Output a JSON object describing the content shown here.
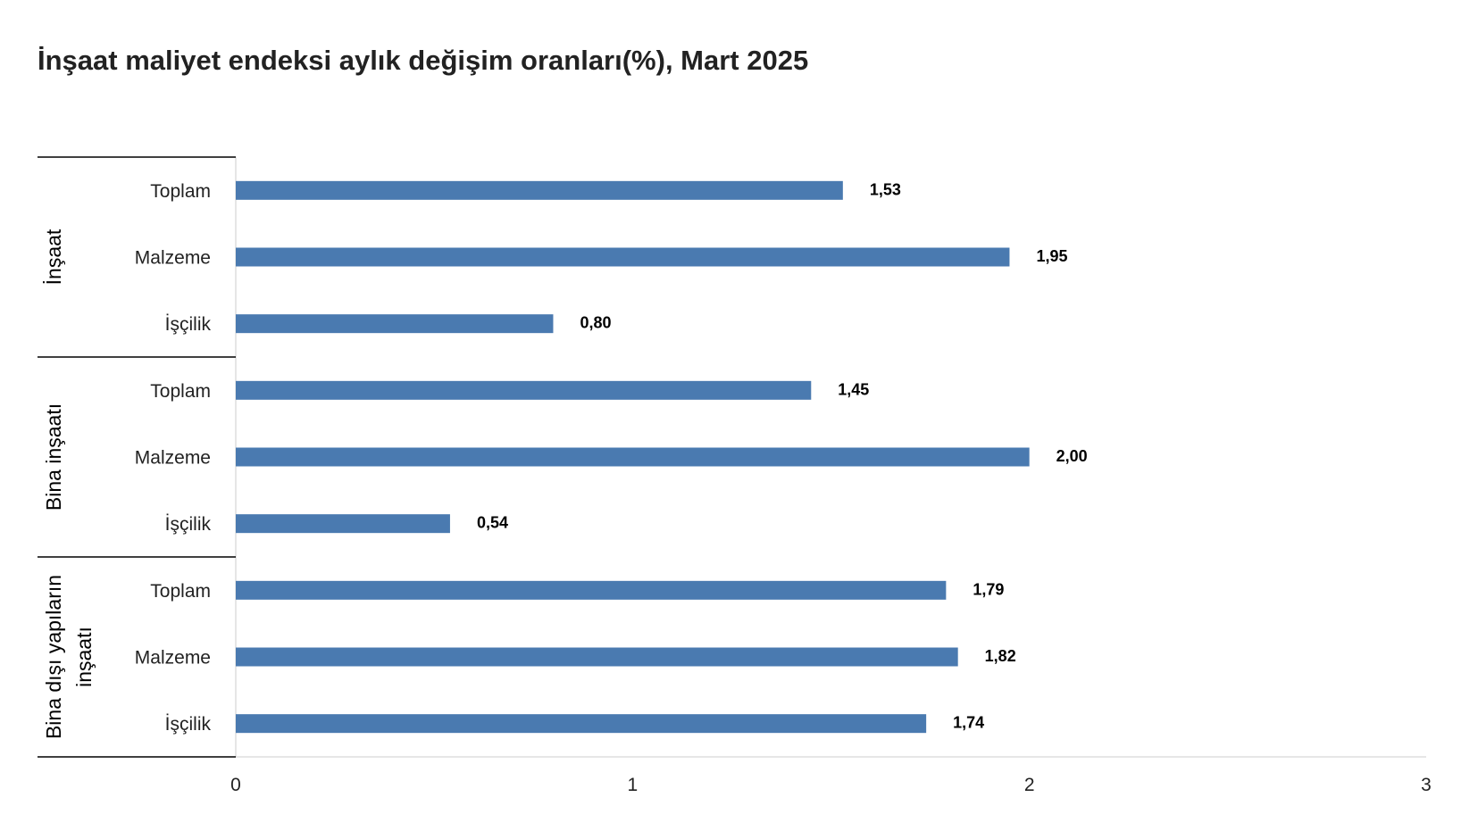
{
  "chart_data": {
    "type": "bar",
    "orientation": "horizontal",
    "title": "İnşaat maliyet endeksi aylık değişim oranları(%), Mart 2025",
    "xlim": [
      0,
      3
    ],
    "x_ticks": [
      "0",
      "1",
      "2",
      "3"
    ],
    "groups": [
      {
        "name_lines": [
          "İnşaat"
        ],
        "categories": [
          "Toplam",
          "Malzeme",
          "İşçilik"
        ],
        "values": [
          1.53,
          1.95,
          0.8
        ],
        "labels": [
          "1,53",
          "1,95",
          "0,80"
        ]
      },
      {
        "name_lines": [
          "Bina inşaatı"
        ],
        "categories": [
          "Toplam",
          "Malzeme",
          "İşçilik"
        ],
        "values": [
          1.45,
          2.0,
          0.54
        ],
        "labels": [
          "1,45",
          "2,00",
          "0,54"
        ]
      },
      {
        "name_lines": [
          "Bina dışı yapıların",
          "inşaatı"
        ],
        "categories": [
          "Toplam",
          "Malzeme",
          "İşçilik"
        ],
        "values": [
          1.79,
          1.82,
          1.74
        ],
        "labels": [
          "1,79",
          "1,82",
          "1,74"
        ]
      }
    ],
    "bar_color": "#4a7ab0",
    "grid": false,
    "legend": "none"
  }
}
